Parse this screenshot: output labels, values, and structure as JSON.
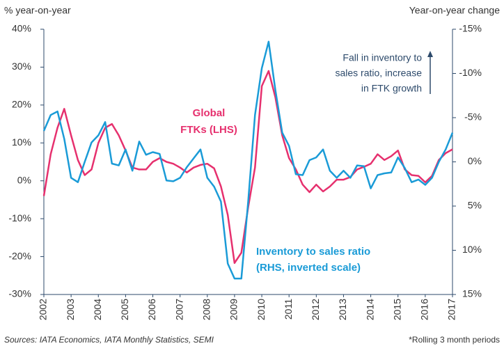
{
  "chart_data": {
    "type": "line",
    "ylabel": "% year-on-year",
    "y2label": "Year-on-year change",
    "x": [
      2002,
      2002.25,
      2002.5,
      2002.75,
      2003,
      2003.25,
      2003.5,
      2003.75,
      2004,
      2004.25,
      2004.5,
      2004.75,
      2005,
      2005.25,
      2005.5,
      2005.75,
      2006,
      2006.25,
      2006.5,
      2006.75,
      2007,
      2007.25,
      2007.5,
      2007.75,
      2008,
      2008.25,
      2008.5,
      2008.75,
      2009,
      2009.25,
      2009.5,
      2009.75,
      2010,
      2010.25,
      2010.5,
      2010.75,
      2011,
      2011.25,
      2011.5,
      2011.75,
      2012,
      2012.25,
      2012.5,
      2012.75,
      2013,
      2013.25,
      2013.5,
      2013.75,
      2014,
      2014.25,
      2014.5,
      2014.75,
      2015,
      2015.25,
      2015.5,
      2015.75,
      2016,
      2016.25,
      2016.5,
      2016.75,
      2017
    ],
    "xlim": [
      2002,
      2017
    ],
    "xticks": [
      2002,
      2003,
      2004,
      2005,
      2006,
      2007,
      2008,
      2009,
      2010,
      2011,
      2012,
      2013,
      2014,
      2015,
      2016,
      2017
    ],
    "ylim": [
      -30,
      40
    ],
    "yticks": [
      {
        "value": -30,
        "label": "-30%"
      },
      {
        "value": -20,
        "label": "-20%"
      },
      {
        "value": -10,
        "label": "-10%"
      },
      {
        "value": 0,
        "label": "0%"
      },
      {
        "value": 10,
        "label": "10%"
      },
      {
        "value": 20,
        "label": "20%"
      },
      {
        "value": 30,
        "label": "30%"
      },
      {
        "value": 40,
        "label": "40%"
      }
    ],
    "y2lim": [
      15,
      -15
    ],
    "y2ticks": [
      {
        "value": 15,
        "label": "15%"
      },
      {
        "value": 10,
        "label": "10%"
      },
      {
        "value": 5,
        "label": "5%"
      },
      {
        "value": 0,
        "label": "0%"
      },
      {
        "value": -5,
        "label": "-5%"
      },
      {
        "value": -10,
        "label": "-10%"
      },
      {
        "value": -15,
        "label": "-15%"
      }
    ],
    "series": [
      {
        "name": "Global FTKs (LHS)",
        "color": "#e6306e",
        "axis": "y",
        "values": [
          -4,
          7,
          14,
          19,
          12,
          5.5,
          1.5,
          3,
          10,
          14,
          15,
          12,
          8,
          3.5,
          3,
          3,
          5,
          6,
          5,
          4.5,
          3.5,
          2.2,
          3.5,
          4.2,
          4.5,
          3.3,
          -1.5,
          -9,
          -21.7,
          -19,
          -7,
          3.5,
          25,
          29,
          22,
          12,
          6,
          3,
          -1,
          -3,
          -1,
          -2.8,
          -1.5,
          0.3,
          0.3,
          1,
          3,
          3.7,
          4.5,
          7,
          5.5,
          6.5,
          8,
          3,
          1.5,
          1.3,
          -0.4,
          1.3,
          5.5,
          7.3,
          8.3
        ]
      },
      {
        "name": "Inventory to sales ratio (RHS, inverted scale)",
        "color": "#1a9bd7",
        "axis": "y2",
        "values": [
          -3.5,
          -5.3,
          -5.7,
          -2.6,
          1.8,
          2.3,
          0,
          -2.2,
          -3,
          -4.5,
          0.2,
          0.4,
          -1.4,
          1,
          -2.3,
          -0.8,
          -1.1,
          -0.9,
          2.1,
          2.2,
          1.8,
          0.6,
          -0.4,
          -1.4,
          1.8,
          2.8,
          4.5,
          11.5,
          13.2,
          13.2,
          4.5,
          -5.3,
          -10.6,
          -13.6,
          -8.1,
          -3.3,
          -1.8,
          1.4,
          1.5,
          -0.2,
          -0.5,
          -1.4,
          1,
          1.8,
          1,
          1.8,
          0.4,
          0.5,
          3,
          1.5,
          1.3,
          1.2,
          -0.5,
          0.7,
          2.3,
          2,
          2.6,
          1.8,
          0,
          -1.4,
          -3.3
        ]
      }
    ],
    "annotations": [
      {
        "lines": [
          "Global",
          "FTKs (LHS)"
        ],
        "color": "#e6306e"
      },
      {
        "lines": [
          "Inventory to sales ratio",
          "(RHS, inverted scale)"
        ],
        "color": "#1a9bd7"
      },
      {
        "lines": [
          "Fall in inventory to",
          "sales ratio, increase",
          "in FTK growth"
        ],
        "color": "#2d4a6b"
      }
    ],
    "source": "Sources: IATA Economics, IATA Monthly Statistics, SEMI",
    "note": "*Rolling 3 month periods"
  }
}
